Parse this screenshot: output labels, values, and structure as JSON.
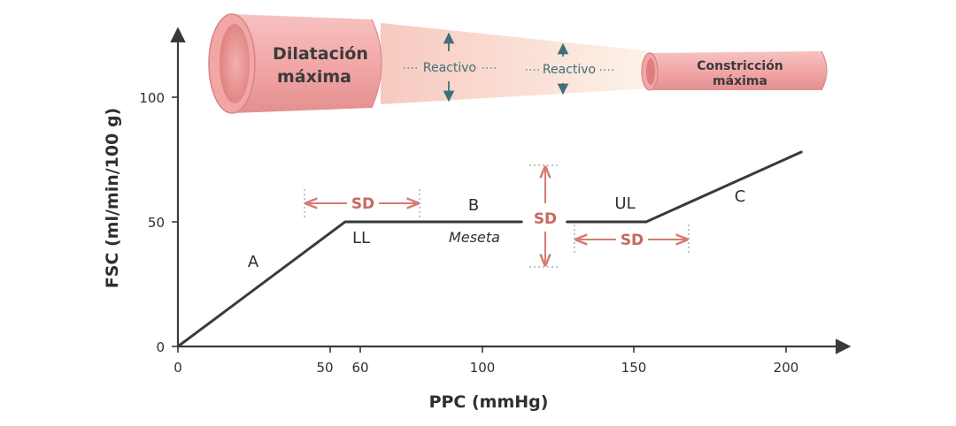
{
  "chart_data": {
    "type": "line",
    "xlabel": "PPC (mmHg)",
    "ylabel": "FSC (ml/min/100 g)",
    "x_ticks": [
      "0",
      "50",
      "60",
      "100",
      "150",
      "200"
    ],
    "y_ticks": [
      "0",
      "50",
      "100"
    ],
    "xlim": [
      0,
      220
    ],
    "ylim": [
      0,
      130
    ],
    "series": [
      {
        "x": [
          0,
          55,
          113,
          128,
          154,
          205
        ],
        "y": [
          0,
          50,
          50,
          50,
          50,
          78
        ],
        "gap": [
          113,
          128
        ]
      }
    ],
    "labels": {
      "a": "A",
      "b": "B",
      "c": "C",
      "ll": "LL",
      "ul": "UL",
      "meseta": "Meseta",
      "sd": "SD"
    }
  },
  "vessel": {
    "dilated_line1": "Dilatación",
    "dilated_line2": "máxima",
    "constricted_line1": "Constricción",
    "constricted_line2": "máxima",
    "reactive_1": "Reactivo",
    "reactive_2": "Reactivo",
    "colors": {
      "vessel_pink": "#f2a7a7",
      "vessel_dark": "#d98282",
      "lumen": "#e88a8a",
      "cone_start": "#f7c9bf",
      "cone_end": "#fdf0e4",
      "accent_teal": "#3f7077",
      "sd_red": "#c9685f"
    }
  }
}
